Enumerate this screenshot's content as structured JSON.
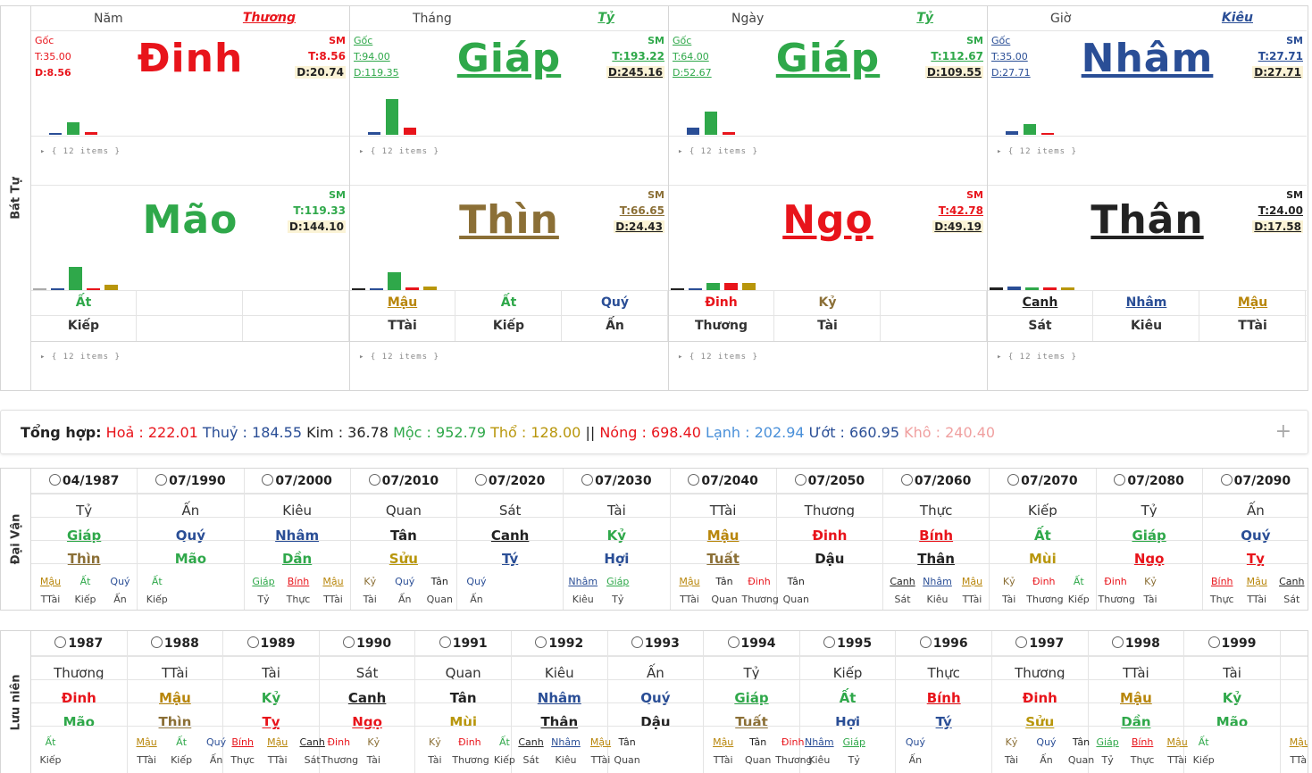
{
  "bat_tu": {
    "side_label": "Bát Tự",
    "json_preview": "{ 12 items }",
    "pillars": [
      {
        "name": "Năm",
        "relation": "Thương",
        "relation_color": "#e8141b",
        "goc": "Gốc",
        "goc_color": "#e8141b",
        "stem": "Đinh",
        "stem_color": "#e8141b",
        "stem_underline": false,
        "sm": "SM",
        "t_left": "T:35.00",
        "d_left": "D:8.56",
        "t_right": "T:8.56",
        "d_right": "D:20.74",
        "branch": "Mão",
        "branch_color": "#2fa84a",
        "branch_underline": false,
        "b_sm": "SM",
        "b_t": "T:119.33",
        "b_d": "D:144.10",
        "hidden": [
          {
            "stem": "Ất",
            "stem_color": "#2fa84a",
            "god": "Kiếp"
          },
          {
            "stem": "",
            "stem_color": "#222",
            "god": ""
          },
          {
            "stem": "",
            "stem_color": "#222",
            "god": ""
          }
        ],
        "stem_bars": [
          0.05,
          0.35,
          0.07
        ],
        "stem_bar_colors": [
          "#2a4e96",
          "#2fa84a",
          "#e8141b"
        ],
        "branch_bars": [
          0.02,
          0.03,
          0.65,
          0.03,
          0.15
        ],
        "branch_bar_colors": [
          "#aaaaaa",
          "#2a4e96",
          "#2fa84a",
          "#e8141b",
          "#b8960b"
        ]
      },
      {
        "name": "Tháng",
        "relation": "Tỷ",
        "relation_color": "#2fa84a",
        "goc": "Gốc",
        "goc_color": "#2fa84a",
        "stem": "Giáp",
        "stem_color": "#2fa84a",
        "stem_underline": true,
        "sm": "SM",
        "t_left": "T:94.00",
        "d_left": "D:119.35",
        "t_right": "T:193.22",
        "d_right": "D:245.16",
        "branch": "Thìn",
        "branch_color": "#8b6f36",
        "branch_underline": true,
        "b_sm": "SM",
        "b_t": "T:66.65",
        "b_d": "D:24.43",
        "hidden": [
          {
            "stem": "Mậu",
            "stem_color": "#b8860b",
            "god": "TTài"
          },
          {
            "stem": "Ất",
            "stem_color": "#2fa84a",
            "god": "Kiếp"
          },
          {
            "stem": "Quý",
            "stem_color": "#2a4e96",
            "god": "Ấn"
          }
        ],
        "stem_bars": [
          0.08,
          1.0,
          0.2
        ],
        "stem_bar_colors": [
          "#2a4e96",
          "#2fa84a",
          "#e8141b"
        ],
        "branch_bars": [
          0.02,
          0.05,
          0.5,
          0.07,
          0.1
        ],
        "branch_bar_colors": [
          "#222222",
          "#2a4e96",
          "#2fa84a",
          "#e8141b",
          "#b8960b"
        ]
      },
      {
        "name": "Ngày",
        "relation": "Tỷ",
        "relation_color": "#2fa84a",
        "goc": "Gốc",
        "goc_color": "#2fa84a",
        "stem": "Giáp",
        "stem_color": "#2fa84a",
        "stem_underline": true,
        "sm": "SM",
        "t_left": "T:64.00",
        "d_left": "D:52.67",
        "t_right": "T:112.67",
        "d_right": "D:109.55",
        "branch": "Ngọ",
        "branch_color": "#e8141b",
        "branch_underline": true,
        "b_sm": "SM",
        "b_t": "T:42.78",
        "b_d": "D:49.19",
        "hidden": [
          {
            "stem": "Đinh",
            "stem_color": "#e8141b",
            "god": "Thương"
          },
          {
            "stem": "Kỷ",
            "stem_color": "#8b6f36",
            "god": "Tài"
          },
          {
            "stem": "",
            "stem_color": "#222",
            "god": ""
          }
        ],
        "stem_bars": [
          0.2,
          0.65,
          0.07
        ],
        "stem_bar_colors": [
          "#2a4e96",
          "#2fa84a",
          "#e8141b"
        ],
        "branch_bars": [
          0.06,
          0.06,
          0.2,
          0.2,
          0.2
        ],
        "branch_bar_colors": [
          "#222222",
          "#2a4e96",
          "#2fa84a",
          "#e8141b",
          "#b8960b"
        ]
      },
      {
        "name": "Giờ",
        "relation": "Kiêu",
        "relation_color": "#2a4e96",
        "goc": "Gốc",
        "goc_color": "#2a4e96",
        "stem": "Nhâm",
        "stem_color": "#2a4e96",
        "stem_underline": true,
        "sm": "SM",
        "t_left": "T:35.00",
        "d_left": "D:27.71",
        "t_right": "T:27.71",
        "d_right": "D:27.71",
        "branch": "Thân",
        "branch_color": "#222222",
        "branch_underline": true,
        "b_sm": "SM",
        "b_t": "T:24.00",
        "b_d": "D:17.58",
        "hidden": [
          {
            "stem": "Canh",
            "stem_color": "#222222",
            "god": "Sát"
          },
          {
            "stem": "Nhâm",
            "stem_color": "#2a4e96",
            "god": "Kiêu"
          },
          {
            "stem": "Mậu",
            "stem_color": "#b8860b",
            "god": "TTài"
          }
        ],
        "stem_bars": [
          0.1,
          0.3,
          0.05
        ],
        "stem_bar_colors": [
          "#2a4e96",
          "#2fa84a",
          "#e8141b"
        ],
        "branch_bars": [
          0.07,
          0.1,
          0.07,
          0.07,
          0.07
        ],
        "branch_bar_colors": [
          "#222222",
          "#2a4e96",
          "#2fa84a",
          "#e8141b",
          "#b8960b"
        ]
      }
    ]
  },
  "summary": {
    "label": "Tổng hợp:",
    "items": [
      {
        "text": "Hoả : 222.01",
        "color": "#e8141b"
      },
      {
        "text": "Thuỷ : 184.55",
        "color": "#2a4e96"
      },
      {
        "text": "Kim : 36.78",
        "color": "#222222"
      },
      {
        "text": "Mộc : 952.79",
        "color": "#2fa84a"
      },
      {
        "text": "Thổ : 128.00",
        "color": "#b8960b"
      },
      {
        "text": "||",
        "color": "#222222"
      },
      {
        "text": "Nóng : 698.40",
        "color": "#e8141b"
      },
      {
        "text": "Lạnh : 202.94",
        "color": "#4a90d9"
      },
      {
        "text": "Ướt : 660.95",
        "color": "#2a4e96"
      },
      {
        "text": "Khô : 240.40",
        "color": "#f0a0a0"
      }
    ],
    "expand": "+"
  },
  "dai_van": {
    "side_label": "Đại Vận",
    "cols": [
      {
        "date": "04/1987",
        "god": "Tỷ",
        "stem": "Giáp",
        "stem_color": "#2fa84a",
        "branch": "Thìn",
        "branch_color": "#8b6f36",
        "hidden": [
          [
            "Mậu",
            "#b8860b",
            "TTài"
          ],
          [
            "Ất",
            "#2fa84a",
            "Kiếp"
          ],
          [
            "Quý",
            "#2a4e96",
            "Ấn"
          ]
        ]
      },
      {
        "date": "07/1990",
        "god": "Ấn",
        "stem": "Quý",
        "stem_color": "#2a4e96",
        "branch": "Mão",
        "branch_color": "#2fa84a",
        "hidden": [
          [
            "Ất",
            "#2fa84a",
            "Kiếp"
          ]
        ]
      },
      {
        "date": "07/2000",
        "god": "Kiêu",
        "stem": "Nhâm",
        "stem_color": "#2a4e96",
        "branch": "Dần",
        "branch_color": "#2fa84a",
        "hidden": [
          [
            "Giáp",
            "#2fa84a",
            "Tỷ"
          ],
          [
            "Bính",
            "#e8141b",
            "Thực"
          ],
          [
            "Mậu",
            "#b8860b",
            "TTài"
          ]
        ]
      },
      {
        "date": "07/2010",
        "god": "Quan",
        "stem": "Tân",
        "stem_color": "#222222",
        "branch": "Sửu",
        "branch_color": "#b8960b",
        "hidden": [
          [
            "Kỷ",
            "#8b6f36",
            "Tài"
          ],
          [
            "Quý",
            "#2a4e96",
            "Ấn"
          ],
          [
            "Tân",
            "#222222",
            "Quan"
          ]
        ]
      },
      {
        "date": "07/2020",
        "god": "Sát",
        "stem": "Canh",
        "stem_color": "#222222",
        "branch": "Tý",
        "branch_color": "#2a4e96",
        "hidden": [
          [
            "Quý",
            "#2a4e96",
            "Ấn"
          ]
        ]
      },
      {
        "date": "07/2030",
        "god": "Tài",
        "stem": "Kỷ",
        "stem_color": "#2fa84a",
        "branch": "Hợi",
        "branch_color": "#2a4e96",
        "hidden": [
          [
            "Nhâm",
            "#2a4e96",
            "Kiêu"
          ],
          [
            "Giáp",
            "#2fa84a",
            "Tỷ"
          ]
        ]
      },
      {
        "date": "07/2040",
        "god": "TTài",
        "stem": "Mậu",
        "stem_color": "#b8860b",
        "branch": "Tuất",
        "branch_color": "#8b6f36",
        "hidden": [
          [
            "Mậu",
            "#b8860b",
            "TTài"
          ],
          [
            "Tân",
            "#222222",
            "Quan"
          ],
          [
            "Đinh",
            "#e8141b",
            "Thương"
          ]
        ]
      },
      {
        "date": "07/2050",
        "god": "Thương",
        "stem": "Đinh",
        "stem_color": "#e8141b",
        "branch": "Dậu",
        "branch_color": "#222222",
        "hidden": [
          [
            "Tân",
            "#222222",
            "Quan"
          ]
        ]
      },
      {
        "date": "07/2060",
        "god": "Thực",
        "stem": "Bính",
        "stem_color": "#e8141b",
        "branch": "Thân",
        "branch_color": "#222222",
        "hidden": [
          [
            "Canh",
            "#222222",
            "Sát"
          ],
          [
            "Nhâm",
            "#2a4e96",
            "Kiêu"
          ],
          [
            "Mậu",
            "#b8860b",
            "TTài"
          ]
        ]
      },
      {
        "date": "07/2070",
        "god": "Kiếp",
        "stem": "Ất",
        "stem_color": "#2fa84a",
        "branch": "Mùi",
        "branch_color": "#b8960b",
        "hidden": [
          [
            "Kỷ",
            "#8b6f36",
            "Tài"
          ],
          [
            "Đinh",
            "#e8141b",
            "Thương"
          ],
          [
            "Ất",
            "#2fa84a",
            "Kiếp"
          ]
        ]
      },
      {
        "date": "07/2080",
        "god": "Tỷ",
        "stem": "Giáp",
        "stem_color": "#2fa84a",
        "branch": "Ngọ",
        "branch_color": "#e8141b",
        "hidden": [
          [
            "Đinh",
            "#e8141b",
            "Thương"
          ],
          [
            "Kỷ",
            "#8b6f36",
            "Tài"
          ]
        ]
      },
      {
        "date": "07/2090",
        "god": "Ấn",
        "stem": "Quý",
        "stem_color": "#2a4e96",
        "branch": "Tỵ",
        "branch_color": "#e8141b",
        "hidden": [
          [
            "Bính",
            "#e8141b",
            "Thực"
          ],
          [
            "Mậu",
            "#b8860b",
            "TTài"
          ],
          [
            "Canh",
            "#222222",
            "Sát"
          ]
        ]
      }
    ]
  },
  "luu_nien": {
    "side_label": "Lưu niên",
    "cols": [
      {
        "date": "1987",
        "god": "Thương",
        "stem": "Đinh",
        "stem_color": "#e8141b",
        "branch": "Mão",
        "branch_color": "#2fa84a",
        "hidden": [
          [
            "Ất",
            "#2fa84a",
            "Kiếp"
          ]
        ]
      },
      {
        "date": "1988",
        "god": "TTài",
        "stem": "Mậu",
        "stem_color": "#b8860b",
        "branch": "Thìn",
        "branch_color": "#8b6f36",
        "hidden": [
          [
            "Mậu",
            "#b8860b",
            "TTài"
          ],
          [
            "Ất",
            "#2fa84a",
            "Kiếp"
          ],
          [
            "Quý",
            "#2a4e96",
            "Ấn"
          ]
        ]
      },
      {
        "date": "1989",
        "god": "Tài",
        "stem": "Kỷ",
        "stem_color": "#2fa84a",
        "branch": "Tỵ",
        "branch_color": "#e8141b",
        "hidden": [
          [
            "Bính",
            "#e8141b",
            "Thực"
          ],
          [
            "Mậu",
            "#b8860b",
            "TTài"
          ],
          [
            "Canh",
            "#222222",
            "Sát"
          ]
        ]
      },
      {
        "date": "1990",
        "god": "Sát",
        "stem": "Canh",
        "stem_color": "#222222",
        "branch": "Ngọ",
        "branch_color": "#e8141b",
        "hidden": [
          [
            "Đinh",
            "#e8141b",
            "Thương"
          ],
          [
            "Kỷ",
            "#8b6f36",
            "Tài"
          ]
        ]
      },
      {
        "date": "1991",
        "god": "Quan",
        "stem": "Tân",
        "stem_color": "#222222",
        "branch": "Mùi",
        "branch_color": "#b8960b",
        "hidden": [
          [
            "Kỷ",
            "#8b6f36",
            "Tài"
          ],
          [
            "Đinh",
            "#e8141b",
            "Thương"
          ],
          [
            "Ất",
            "#2fa84a",
            "Kiếp"
          ]
        ]
      },
      {
        "date": "1992",
        "god": "Kiêu",
        "stem": "Nhâm",
        "stem_color": "#2a4e96",
        "branch": "Thân",
        "branch_color": "#222222",
        "hidden": [
          [
            "Canh",
            "#222222",
            "Sát"
          ],
          [
            "Nhâm",
            "#2a4e96",
            "Kiêu"
          ],
          [
            "Mậu",
            "#b8860b",
            "TTài"
          ]
        ]
      },
      {
        "date": "1993",
        "god": "Ấn",
        "stem": "Quý",
        "stem_color": "#2a4e96",
        "branch": "Dậu",
        "branch_color": "#222222",
        "hidden": [
          [
            "Tân",
            "#222222",
            "Quan"
          ]
        ]
      },
      {
        "date": "1994",
        "god": "Tỷ",
        "stem": "Giáp",
        "stem_color": "#2fa84a",
        "branch": "Tuất",
        "branch_color": "#8b6f36",
        "hidden": [
          [
            "Mậu",
            "#b8860b",
            "TTài"
          ],
          [
            "Tân",
            "#222222",
            "Quan"
          ],
          [
            "Đinh",
            "#e8141b",
            "Thương"
          ]
        ]
      },
      {
        "date": "1995",
        "god": "Kiếp",
        "stem": "Ất",
        "stem_color": "#2fa84a",
        "branch": "Hợi",
        "branch_color": "#2a4e96",
        "hidden": [
          [
            "Nhâm",
            "#2a4e96",
            "Kiêu"
          ],
          [
            "Giáp",
            "#2fa84a",
            "Tỷ"
          ]
        ]
      },
      {
        "date": "1996",
        "god": "Thực",
        "stem": "Bính",
        "stem_color": "#e8141b",
        "branch": "Tý",
        "branch_color": "#2a4e96",
        "hidden": [
          [
            "Quý",
            "#2a4e96",
            "Ấn"
          ]
        ]
      },
      {
        "date": "1997",
        "god": "Thương",
        "stem": "Đinh",
        "stem_color": "#e8141b",
        "branch": "Sửu",
        "branch_color": "#b8960b",
        "hidden": [
          [
            "Kỷ",
            "#8b6f36",
            "Tài"
          ],
          [
            "Quý",
            "#2a4e96",
            "Ấn"
          ],
          [
            "Tân",
            "#222222",
            "Quan"
          ]
        ]
      },
      {
        "date": "1998",
        "god": "TTài",
        "stem": "Mậu",
        "stem_color": "#b8860b",
        "branch": "Dần",
        "branch_color": "#2fa84a",
        "hidden": [
          [
            "Giáp",
            "#2fa84a",
            "Tỷ"
          ],
          [
            "Bính",
            "#e8141b",
            "Thực"
          ],
          [
            "Mậu",
            "#b8860b",
            "TTài"
          ]
        ]
      },
      {
        "date": "1999",
        "god": "Tài",
        "stem": "Kỷ",
        "stem_color": "#2fa84a",
        "branch": "Mão",
        "branch_color": "#2fa84a",
        "hidden": [
          [
            "Ất",
            "#2fa84a",
            "Kiếp"
          ]
        ]
      },
      {
        "date": "",
        "god": "",
        "stem": "",
        "stem_color": "#222222",
        "branch": "",
        "branch_color": "#222222",
        "hidden": [
          [
            "Mậu",
            "#b8860b",
            "TTài"
          ]
        ]
      }
    ]
  }
}
